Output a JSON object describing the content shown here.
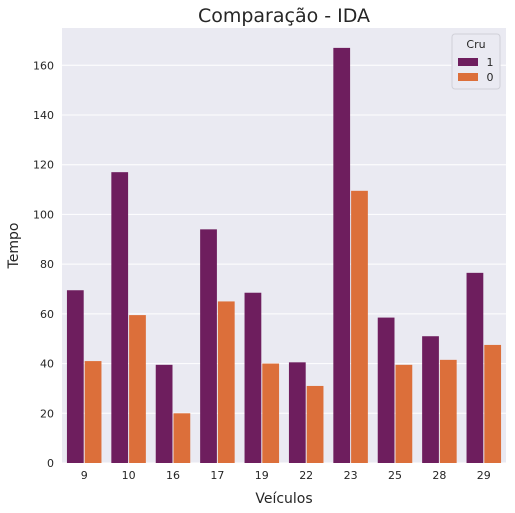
{
  "chart_data": {
    "type": "bar",
    "title": "Comparação - IDA",
    "xlabel": "Veículos",
    "ylabel": "Tempo",
    "categories": [
      "9",
      "10",
      "16",
      "17",
      "19",
      "22",
      "23",
      "25",
      "28",
      "29"
    ],
    "ylim": [
      0,
      175
    ],
    "yticks": [
      0,
      20,
      40,
      60,
      80,
      100,
      120,
      140,
      160
    ],
    "grid": true,
    "legend": {
      "title": "Cru",
      "placement": "top-right"
    },
    "series": [
      {
        "name": "1",
        "color": "#6e1e5e",
        "values": [
          69.5,
          117,
          39.5,
          94,
          68.5,
          40.5,
          167,
          58.5,
          51,
          76.5
        ]
      },
      {
        "name": "0",
        "color": "#dc6f3a",
        "values": [
          41,
          59.5,
          20,
          65,
          40,
          31,
          109.5,
          39.5,
          41.5,
          47.5
        ]
      }
    ]
  },
  "colors": {
    "plot_background": "#eaeaf2",
    "grid": "#ffffff",
    "text": "#262626"
  }
}
